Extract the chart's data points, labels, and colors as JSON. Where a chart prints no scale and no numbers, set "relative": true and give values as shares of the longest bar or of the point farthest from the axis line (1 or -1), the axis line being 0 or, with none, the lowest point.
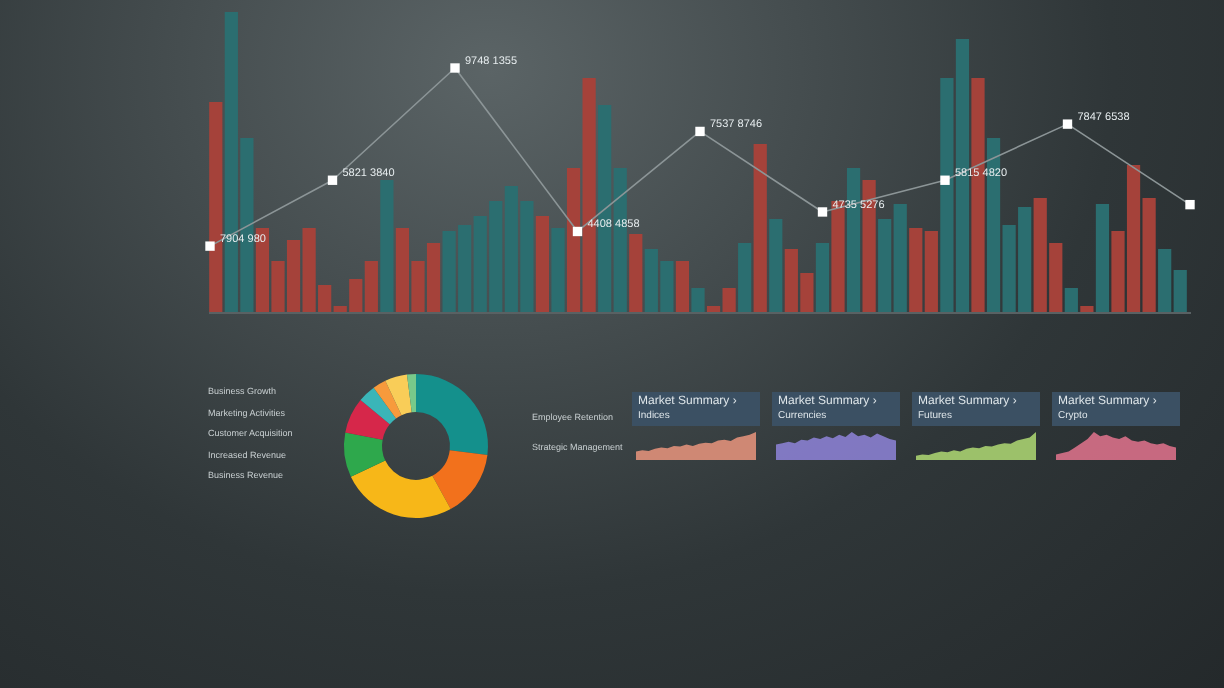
{
  "chart_data": [
    {
      "type": "bar",
      "relative": true,
      "categories": [
        null,
        null,
        null,
        null,
        null,
        null,
        null,
        null,
        null,
        null,
        null,
        null,
        null,
        null,
        null,
        null,
        null,
        null,
        null,
        null,
        null,
        null,
        null,
        null,
        null,
        null,
        null,
        null,
        null,
        null,
        null,
        null,
        null,
        null,
        null,
        null,
        null,
        null,
        null,
        null,
        null,
        null,
        null,
        null,
        null,
        null,
        null,
        null,
        null,
        null,
        null,
        null,
        null,
        null,
        null,
        null,
        null,
        null,
        null,
        null,
        null,
        null,
        null
      ],
      "colors": [
        "#a5423a",
        "#2b6e70",
        "#2b6e70",
        "#a5423a",
        "#a5423a",
        "#a5423a",
        "#a5423a",
        "#a5423a",
        "#a5423a",
        "#a5423a",
        "#a5423a",
        "#2b6e70",
        "#a5423a",
        "#a5423a",
        "#a5423a",
        "#2b6e70",
        "#2b6e70",
        "#2b6e70",
        "#2b6e70",
        "#2b6e70",
        "#2b6e70",
        "#a5423a",
        "#2b6e70",
        "#a5423a",
        "#a5423a",
        "#2b6e70",
        "#2b6e70",
        "#a5423a",
        "#2b6e70",
        "#2b6e70",
        "#a5423a",
        "#2b6e70",
        "#a5423a",
        "#a5423a",
        "#2b6e70",
        "#a5423a",
        "#2b6e70",
        "#a5423a",
        "#a5423a",
        "#2b6e70",
        "#a5423a",
        "#2b6e70",
        "#a5423a",
        "#2b6e70",
        "#2b6e70",
        "#a5423a",
        "#a5423a",
        "#2b6e70",
        "#2b6e70",
        "#a5423a",
        "#2b6e70",
        "#2b6e70",
        "#2b6e70",
        "#a5423a",
        "#a5423a",
        "#2b6e70",
        "#a5423a",
        "#2b6e70",
        "#a5423a",
        "#a5423a",
        "#a5423a",
        "#2b6e70",
        "#2b6e70"
      ],
      "values": [
        0.7,
        1,
        0.58,
        0.28,
        0.17,
        0.24,
        0.28,
        0.09,
        0.02,
        0.11,
        0.17,
        0.44,
        0.28,
        0.17,
        0.23,
        0.27,
        0.29,
        0.32,
        0.37,
        0.42,
        0.37,
        0.32,
        0.28,
        0.48,
        0.78,
        0.69,
        0.48,
        0.26,
        0.21,
        0.17,
        0.17,
        0.08,
        0.02,
        0.08,
        0.23,
        0.56,
        0.31,
        0.21,
        0.13,
        0.23,
        0.37,
        0.48,
        0.44,
        0.31,
        0.36,
        0.28,
        0.27,
        0.78,
        0.91,
        0.78,
        0.58,
        0.29,
        0.35,
        0.38,
        0.23,
        0.08,
        0.02,
        0.36,
        0.27,
        0.49,
        0.38,
        0.21,
        0.14
      ]
    },
    {
      "type": "line",
      "relative": true,
      "categories": [
        null,
        null,
        null,
        null,
        null,
        null,
        null,
        null,
        null
      ],
      "color": "#8c9597",
      "marker": "square",
      "values": [
        0.27,
        0.54,
        1,
        0.33,
        0.74,
        0.41,
        0.54,
        0.77,
        0.44
      ],
      "annotations": [
        "7904 980",
        "5821 3840",
        "9748 1355",
        "4408 4858",
        "7537 8746",
        "4735 5276",
        "5815 4820",
        "7847 6538"
      ]
    },
    {
      "type": "donut",
      "categories": [
        null,
        null,
        null,
        null,
        null,
        null,
        null,
        null,
        null
      ],
      "values": [
        27,
        15,
        26,
        10,
        8,
        4,
        3,
        5,
        2
      ],
      "colors": [
        "#14908c",
        "#f2711c",
        "#f7b718",
        "#2ea84c",
        "#d6274a",
        "#3ab5b8",
        "#f79a3c",
        "#f9cd58",
        "#78c98a"
      ],
      "annotations": [
        "Business Growth",
        "Marketing Activities",
        "Customer Acquisition",
        "Increased Revenue",
        "Business Revenue",
        "Employee Retention",
        "Strategic Management"
      ]
    },
    {
      "type": "area",
      "relative": true,
      "title": "Market Summary ›",
      "subtitle": "Indices",
      "categories": [
        null,
        null,
        null,
        null,
        null,
        null,
        null,
        null,
        null,
        null,
        null,
        null,
        null,
        null,
        null,
        null,
        null,
        null,
        null,
        null
      ],
      "color": "#e0907a",
      "values": [
        0.3,
        0.35,
        0.32,
        0.4,
        0.45,
        0.42,
        0.5,
        0.48,
        0.55,
        0.5,
        0.58,
        0.62,
        0.6,
        0.7,
        0.72,
        0.68,
        0.8,
        0.85,
        0.9,
        1
      ]
    },
    {
      "type": "area",
      "relative": true,
      "title": "Market Summary ›",
      "subtitle": "Currencies",
      "categories": [
        null,
        null,
        null,
        null,
        null,
        null,
        null,
        null,
        null,
        null,
        null,
        null,
        null,
        null,
        null,
        null,
        null,
        null,
        null,
        null
      ],
      "color": "#8a7fd0",
      "values": [
        0.55,
        0.6,
        0.65,
        0.6,
        0.72,
        0.7,
        0.8,
        0.75,
        0.85,
        0.78,
        0.9,
        0.82,
        1,
        0.85,
        0.9,
        0.8,
        0.95,
        0.85,
        0.75,
        0.7
      ]
    },
    {
      "type": "area",
      "relative": true,
      "title": "Market Summary ›",
      "subtitle": "Futures",
      "categories": [
        null,
        null,
        null,
        null,
        null,
        null,
        null,
        null,
        null,
        null,
        null,
        null,
        null,
        null,
        null,
        null,
        null,
        null,
        null,
        null
      ],
      "color": "#a8d070",
      "values": [
        0.15,
        0.2,
        0.18,
        0.25,
        0.3,
        0.28,
        0.35,
        0.3,
        0.4,
        0.45,
        0.42,
        0.5,
        0.48,
        0.55,
        0.6,
        0.58,
        0.7,
        0.75,
        0.8,
        1
      ]
    },
    {
      "type": "area",
      "relative": true,
      "title": "Market Summary ›",
      "subtitle": "Crypto",
      "categories": [
        null,
        null,
        null,
        null,
        null,
        null,
        null,
        null,
        null,
        null,
        null,
        null,
        null,
        null,
        null,
        null,
        null,
        null,
        null,
        null
      ],
      "color": "#d87088",
      "values": [
        0.2,
        0.25,
        0.3,
        0.45,
        0.6,
        0.75,
        1,
        0.85,
        0.9,
        0.8,
        0.75,
        0.85,
        0.7,
        0.65,
        0.7,
        0.6,
        0.55,
        0.6,
        0.5,
        0.45
      ]
    }
  ]
}
